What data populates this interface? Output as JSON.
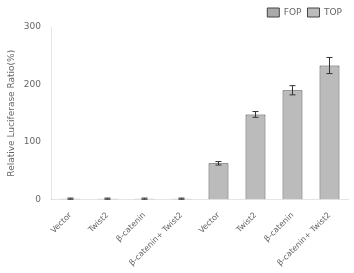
{
  "chart_data": {
    "type": "bar",
    "categories": [
      "Vector",
      "Twist2",
      "β-catenin",
      "β-catenin+ Twist2",
      "Vector",
      "Twist2",
      "β-catenin",
      "β-catenin+ Twist2"
    ],
    "series": [
      {
        "name": "FOP",
        "color": "#aaaaaa",
        "values": [
          1.5,
          1.5,
          1.5,
          1.5,
          null,
          null,
          null,
          null
        ],
        "errors": [
          1.0,
          1.0,
          1.0,
          1.0,
          null,
          null,
          null,
          null
        ]
      },
      {
        "name": "TOP",
        "color": "#bbbbbb",
        "values": [
          null,
          null,
          null,
          null,
          63,
          148,
          190,
          233
        ],
        "errors": [
          null,
          null,
          null,
          null,
          3,
          5,
          8,
          14
        ]
      }
    ],
    "ylabel": "Relative Luciferase Ratio(%)",
    "ylim": [
      0,
      300
    ],
    "yticks": [
      0,
      100,
      200,
      300
    ],
    "grid": false,
    "legend": "upper right"
  }
}
